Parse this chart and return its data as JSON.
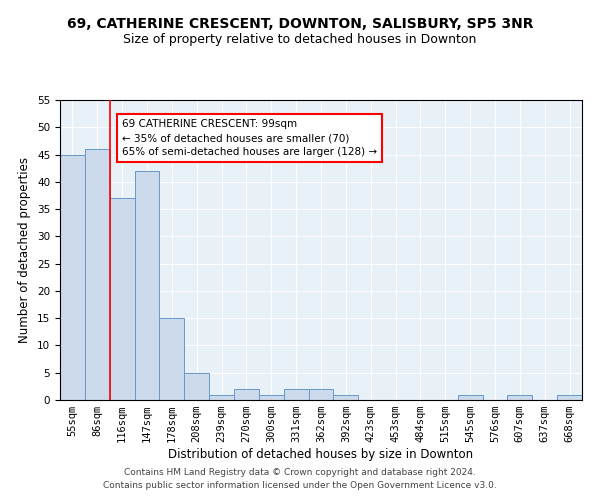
{
  "title1": "69, CATHERINE CRESCENT, DOWNTON, SALISBURY, SP5 3NR",
  "title2": "Size of property relative to detached houses in Downton",
  "xlabel": "Distribution of detached houses by size in Downton",
  "ylabel": "Number of detached properties",
  "categories": [
    "55sqm",
    "86sqm",
    "116sqm",
    "147sqm",
    "178sqm",
    "208sqm",
    "239sqm",
    "270sqm",
    "300sqm",
    "331sqm",
    "362sqm",
    "392sqm",
    "423sqm",
    "453sqm",
    "484sqm",
    "515sqm",
    "545sqm",
    "576sqm",
    "607sqm",
    "637sqm",
    "668sqm"
  ],
  "values": [
    45,
    46,
    37,
    42,
    15,
    5,
    1,
    2,
    1,
    2,
    2,
    1,
    0,
    0,
    0,
    0,
    1,
    0,
    1,
    0,
    1
  ],
  "bar_color": "#cddaeb",
  "bar_edge_color": "#6699cc",
  "redline_x": 1.5,
  "annotation_text": "69 CATHERINE CRESCENT: 99sqm\n← 35% of detached houses are smaller (70)\n65% of semi-detached houses are larger (128) →",
  "annotation_box_color": "white",
  "annotation_box_edge": "red",
  "footnote1": "Contains HM Land Registry data © Crown copyright and database right 2024.",
  "footnote2": "Contains public sector information licensed under the Open Government Licence v3.0.",
  "ylim": [
    0,
    55
  ],
  "title1_fontsize": 10,
  "title2_fontsize": 9,
  "xlabel_fontsize": 8.5,
  "ylabel_fontsize": 8.5,
  "tick_fontsize": 7.5,
  "annot_fontsize": 7.5,
  "footnote_fontsize": 6.5,
  "bg_color": "#e8f0f8"
}
